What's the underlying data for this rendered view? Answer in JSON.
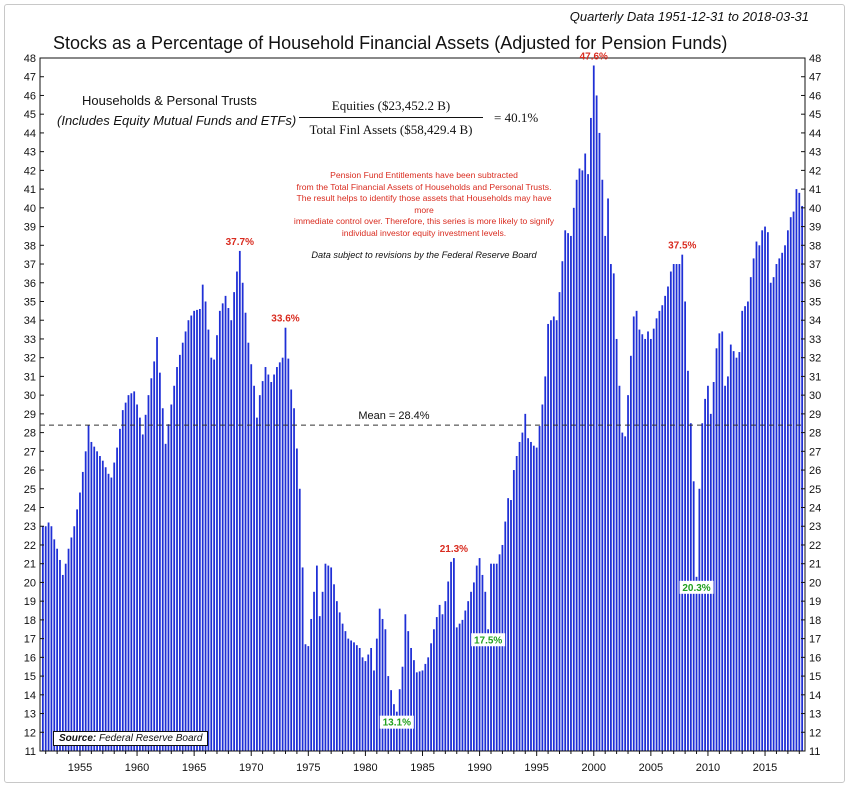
{
  "header": {
    "date_range": "Quarterly Data 1951-12-31 to 2018-03-31",
    "title": "Stocks as a Percentage of Household Financial Assets (Adjusted for Pension Funds)"
  },
  "panel": {
    "households_title": "Households & Personal Trusts",
    "households_sub": "(Includes Equity Mutual Funds and ETFs)",
    "formula_numerator": "Equities ($23,452.2 B)",
    "formula_denominator": "Total Finl Assets ($58,429.4 B)",
    "formula_result": "=  40.1%",
    "note_red": [
      "Pension Fund Entitlements have been subtracted",
      "from the Total Financial Assets of Households and Personal Trusts.",
      "The result helps to identify those assets that Households may have more",
      "immediate control over. Therefore, this series is more likely to signify",
      "individual investor equity investment levels."
    ],
    "note_revisions": "Data subject to revisions by the Federal Reserve Board"
  },
  "source": {
    "label": "Source:",
    "text": "Federal Reserve Board"
  },
  "colors": {
    "bar": "#1f2fd6",
    "bar_edge": "#0a1699",
    "peak_label": "#d92b1f",
    "trough_label": "#22a11f",
    "mean_line": "#333333"
  },
  "chart_data": {
    "type": "bar",
    "title": "Stocks as a Percentage of Household Financial Assets (Adjusted for Pension Funds)",
    "frequency": "quarterly",
    "start": "1951-12-31",
    "end": "2018-03-31",
    "ylim": [
      11,
      48
    ],
    "yticks": [
      11,
      12,
      13,
      14,
      15,
      16,
      17,
      18,
      19,
      20,
      21,
      22,
      23,
      24,
      25,
      26,
      27,
      28,
      29,
      30,
      31,
      32,
      33,
      34,
      35,
      36,
      37,
      38,
      39,
      40,
      41,
      42,
      43,
      44,
      45,
      46,
      47,
      48
    ],
    "xlim": [
      1951.5,
      2018.5
    ],
    "xticks": [
      1955,
      1960,
      1965,
      1970,
      1975,
      1980,
      1985,
      1990,
      1995,
      2000,
      2005,
      2010,
      2015
    ],
    "grid": false,
    "mean": {
      "value": 28.4,
      "label": "Mean = 28.4%"
    },
    "annotations": [
      {
        "x": 1969.0,
        "y": 37.7,
        "label": "37.7%",
        "kind": "peak"
      },
      {
        "x": 1973.0,
        "y": 33.6,
        "label": "33.6%",
        "kind": "peak"
      },
      {
        "x": 1982.75,
        "y": 13.1,
        "label": "13.1%",
        "kind": "trough"
      },
      {
        "x": 1987.75,
        "y": 21.3,
        "label": "21.3%",
        "kind": "peak"
      },
      {
        "x": 1990.75,
        "y": 17.5,
        "label": "17.5%",
        "kind": "trough"
      },
      {
        "x": 2000.0,
        "y": 47.6,
        "label": "47.6%",
        "kind": "peak"
      },
      {
        "x": 2007.75,
        "y": 37.5,
        "label": "37.5%",
        "kind": "peak"
      },
      {
        "x": 2009.0,
        "y": 20.3,
        "label": "20.3%",
        "kind": "trough"
      }
    ],
    "anchors": [
      [
        1951.75,
        23.0
      ],
      [
        1952.0,
        23.0
      ],
      [
        1952.25,
        23.2
      ],
      [
        1952.5,
        23.0
      ],
      [
        1952.75,
        22.3
      ],
      [
        1953.0,
        21.8
      ],
      [
        1953.25,
        21.2
      ],
      [
        1953.5,
        20.4
      ],
      [
        1953.75,
        21.0
      ],
      [
        1954.0,
        21.8
      ],
      [
        1954.5,
        23.0
      ],
      [
        1955.0,
        24.8
      ],
      [
        1955.5,
        27.0
      ],
      [
        1955.75,
        28.4
      ],
      [
        1956.0,
        27.5
      ],
      [
        1956.5,
        27.0
      ],
      [
        1957.0,
        26.5
      ],
      [
        1957.5,
        25.8
      ],
      [
        1957.75,
        25.6
      ],
      [
        1958.25,
        27.2
      ],
      [
        1958.75,
        29.2
      ],
      [
        1959.25,
        30.0
      ],
      [
        1959.75,
        30.2
      ],
      [
        1960.25,
        28.8
      ],
      [
        1960.5,
        27.9
      ],
      [
        1961.0,
        30.0
      ],
      [
        1961.5,
        31.8
      ],
      [
        1961.75,
        33.1
      ],
      [
        1962.25,
        29.3
      ],
      [
        1962.5,
        27.4
      ],
      [
        1963.0,
        29.5
      ],
      [
        1963.5,
        31.5
      ],
      [
        1964.0,
        32.8
      ],
      [
        1964.5,
        34.0
      ],
      [
        1965.0,
        34.5
      ],
      [
        1965.5,
        34.6
      ],
      [
        1965.75,
        35.9
      ],
      [
        1966.0,
        35.0
      ],
      [
        1966.5,
        32.0
      ],
      [
        1966.75,
        31.9
      ],
      [
        1967.25,
        34.5
      ],
      [
        1967.75,
        35.3
      ],
      [
        1968.25,
        34.0
      ],
      [
        1968.5,
        35.5
      ],
      [
        1969.0,
        37.7
      ],
      [
        1969.25,
        36.0
      ],
      [
        1969.75,
        32.8
      ],
      [
        1970.25,
        30.5
      ],
      [
        1970.5,
        28.8
      ],
      [
        1970.75,
        30.0
      ],
      [
        1971.25,
        31.5
      ],
      [
        1971.75,
        30.7
      ],
      [
        1972.25,
        31.5
      ],
      [
        1972.75,
        32.0
      ],
      [
        1973.0,
        33.6
      ],
      [
        1973.5,
        30.3
      ],
      [
        1973.75,
        29.3
      ],
      [
        1974.25,
        25.0
      ],
      [
        1974.5,
        20.8
      ],
      [
        1974.75,
        16.7
      ],
      [
        1975.0,
        16.6
      ],
      [
        1975.5,
        19.5
      ],
      [
        1975.75,
        20.9
      ],
      [
        1976.0,
        18.2
      ],
      [
        1976.25,
        19.5
      ],
      [
        1976.5,
        21.0
      ],
      [
        1977.0,
        20.8
      ],
      [
        1977.5,
        19.0
      ],
      [
        1978.0,
        17.8
      ],
      [
        1978.5,
        17.0
      ],
      [
        1979.0,
        16.8
      ],
      [
        1979.5,
        16.5
      ],
      [
        1979.75,
        16.0
      ],
      [
        1980.0,
        15.8
      ],
      [
        1980.5,
        16.5
      ],
      [
        1980.75,
        15.3
      ],
      [
        1981.0,
        17.0
      ],
      [
        1981.25,
        18.6
      ],
      [
        1981.75,
        17.5
      ],
      [
        1982.0,
        15.0
      ],
      [
        1982.5,
        13.5
      ],
      [
        1982.75,
        13.1
      ],
      [
        1983.25,
        15.5
      ],
      [
        1983.5,
        18.3
      ],
      [
        1984.0,
        16.5
      ],
      [
        1984.5,
        15.2
      ],
      [
        1985.0,
        15.3
      ],
      [
        1985.5,
        16.0
      ],
      [
        1986.0,
        17.5
      ],
      [
        1986.5,
        18.8
      ],
      [
        1986.75,
        18.3
      ],
      [
        1987.0,
        19.0
      ],
      [
        1987.5,
        21.1
      ],
      [
        1987.75,
        21.3
      ],
      [
        1988.0,
        17.6
      ],
      [
        1988.5,
        18.0
      ],
      [
        1989.0,
        19.0
      ],
      [
        1989.5,
        20.0
      ],
      [
        1989.75,
        20.9
      ],
      [
        1990.0,
        21.3
      ],
      [
        1990.5,
        19.5
      ],
      [
        1990.75,
        17.5
      ],
      [
        1991.0,
        21.0
      ],
      [
        1991.5,
        21.0
      ],
      [
        1992.0,
        22.0
      ],
      [
        1992.5,
        24.5
      ],
      [
        1992.75,
        24.4
      ],
      [
        1993.0,
        26.0
      ],
      [
        1993.5,
        27.5
      ],
      [
        1993.75,
        28.0
      ],
      [
        1994.0,
        29.0
      ],
      [
        1994.25,
        27.7
      ],
      [
        1994.75,
        27.3
      ],
      [
        1995.0,
        27.2
      ],
      [
        1995.5,
        29.5
      ],
      [
        1995.75,
        31.0
      ],
      [
        1996.0,
        33.8
      ],
      [
        1996.5,
        34.2
      ],
      [
        1996.75,
        34.0
      ],
      [
        1997.0,
        35.5
      ],
      [
        1997.5,
        38.8
      ],
      [
        1998.0,
        38.5
      ],
      [
        1998.5,
        41.5
      ],
      [
        1998.75,
        42.1
      ],
      [
        1999.0,
        42.0
      ],
      [
        1999.25,
        42.9
      ],
      [
        1999.5,
        41.8
      ],
      [
        1999.75,
        44.8
      ],
      [
        2000.0,
        47.6
      ],
      [
        2000.25,
        46.0
      ],
      [
        2000.5,
        44.0
      ],
      [
        2000.75,
        41.5
      ],
      [
        2001.0,
        38.5
      ],
      [
        2001.25,
        40.5
      ],
      [
        2001.5,
        37.0
      ],
      [
        2001.75,
        36.5
      ],
      [
        2002.0,
        33.0
      ],
      [
        2002.5,
        28.0
      ],
      [
        2002.75,
        27.8
      ],
      [
        2003.0,
        30.0
      ],
      [
        2003.5,
        34.2
      ],
      [
        2003.75,
        34.5
      ],
      [
        2004.0,
        33.5
      ],
      [
        2004.5,
        33.0
      ],
      [
        2004.75,
        33.4
      ],
      [
        2005.0,
        33.0
      ],
      [
        2005.5,
        34.1
      ],
      [
        2005.75,
        34.5
      ],
      [
        2006.0,
        34.8
      ],
      [
        2006.5,
        35.8
      ],
      [
        2006.75,
        36.6
      ],
      [
        2007.0,
        37.0
      ],
      [
        2007.5,
        37.0
      ],
      [
        2007.75,
        37.5
      ],
      [
        2008.0,
        35.0
      ],
      [
        2008.25,
        31.3
      ],
      [
        2008.5,
        28.5
      ],
      [
        2008.75,
        25.4
      ],
      [
        2009.0,
        20.3
      ],
      [
        2009.25,
        25.0
      ],
      [
        2009.5,
        28.5
      ],
      [
        2009.75,
        29.8
      ],
      [
        2010.0,
        30.5
      ],
      [
        2010.25,
        29.0
      ],
      [
        2010.5,
        30.7
      ],
      [
        2010.75,
        32.5
      ],
      [
        2011.0,
        33.3
      ],
      [
        2011.25,
        33.4
      ],
      [
        2011.5,
        30.5
      ],
      [
        2011.75,
        31.0
      ],
      [
        2012.0,
        32.7
      ],
      [
        2012.5,
        32.0
      ],
      [
        2012.75,
        32.3
      ],
      [
        2013.0,
        34.5
      ],
      [
        2013.5,
        35.0
      ],
      [
        2013.75,
        36.3
      ],
      [
        2014.0,
        37.3
      ],
      [
        2014.25,
        38.2
      ],
      [
        2014.5,
        38.0
      ],
      [
        2014.75,
        38.8
      ],
      [
        2015.0,
        39.0
      ],
      [
        2015.25,
        38.7
      ],
      [
        2015.5,
        36.0
      ],
      [
        2015.75,
        36.3
      ],
      [
        2016.0,
        37.0
      ],
      [
        2016.5,
        37.6
      ],
      [
        2016.75,
        38.0
      ],
      [
        2017.0,
        38.8
      ],
      [
        2017.25,
        39.5
      ],
      [
        2017.5,
        39.8
      ],
      [
        2017.75,
        41.0
      ],
      [
        2018.0,
        40.8
      ],
      [
        2018.25,
        40.1
      ]
    ]
  }
}
